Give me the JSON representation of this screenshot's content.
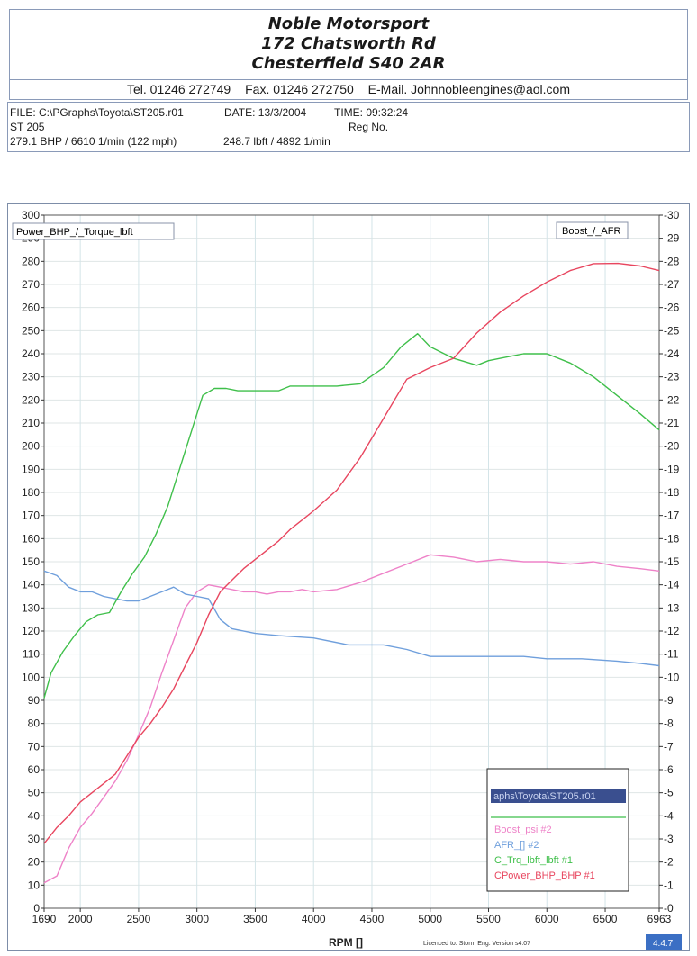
{
  "header": {
    "line1": "Noble Motorsport",
    "line2": "172 Chatsworth Rd",
    "line3": "Chesterfield S40 2AR",
    "tel": "Tel. 01246 272749",
    "fax": "Fax. 01246 272750",
    "email": "E-Mail. Johnnobleengines@aol.com"
  },
  "info": {
    "file": "FILE: C:\\PGraphs\\Toyota\\ST205.r01",
    "date": "DATE: 13/3/2004",
    "time": "TIME: 09:32:24",
    "model": "ST 205",
    "reg": "Reg No.",
    "power_peak": "279.1 BHP / 6610 1/min (122 mph)",
    "torque_peak": "248.7 lbft / 4892 1/min"
  },
  "chart_data": {
    "type": "line",
    "left_axis_label": "Power_BHP_/_Torque_lbft",
    "right_axis_label": "Boost_/_AFR",
    "xlabel": "RPM []",
    "xlim": [
      1690,
      6963
    ],
    "ylim": [
      0,
      300
    ],
    "y2lim": [
      0,
      30
    ],
    "x_ticks": [
      "1690",
      "2000",
      "2500",
      "3000",
      "3500",
      "4000",
      "4500",
      "5000",
      "5500",
      "6000",
      "6500",
      "6963"
    ],
    "y_ticks": [
      "0",
      "10",
      "20",
      "30",
      "40",
      "50",
      "60",
      "70",
      "80",
      "90",
      "100",
      "110",
      "120",
      "130",
      "140",
      "150",
      "160",
      "170",
      "180",
      "190",
      "200",
      "210",
      "220",
      "230",
      "240",
      "250",
      "260",
      "270",
      "280",
      "290",
      "300"
    ],
    "y2_ticks": [
      "0",
      "1",
      "2",
      "3",
      "4",
      "5",
      "6",
      "7",
      "8",
      "9",
      "10",
      "11",
      "12",
      "13",
      "14",
      "15",
      "16",
      "17",
      "18",
      "19",
      "20",
      "21",
      "22",
      "23",
      "24",
      "25",
      "26",
      "27",
      "28",
      "29",
      "30"
    ],
    "grid": true,
    "legend_file": "aphs\\Toyota\\ST205.r01",
    "footer_note": "Licenced to: Storm Eng.  Version s4.07",
    "version_badge": "4.4.7",
    "series": [
      {
        "name": "Boost_psi #2",
        "axis": "right",
        "color": "#ee82c8",
        "x": [
          1690,
          1800,
          1900,
          2000,
          2100,
          2200,
          2300,
          2400,
          2500,
          2600,
          2700,
          2800,
          2900,
          3000,
          3100,
          3200,
          3300,
          3400,
          3500,
          3600,
          3700,
          3800,
          3900,
          4000,
          4200,
          4400,
          4600,
          4800,
          5000,
          5200,
          5400,
          5600,
          5800,
          6000,
          6200,
          6400,
          6600,
          6800,
          6963
        ],
        "y": [
          1.1,
          1.4,
          2.6,
          3.5,
          4.1,
          4.8,
          5.5,
          6.4,
          7.5,
          8.7,
          10.2,
          11.6,
          13.0,
          13.7,
          14.0,
          13.9,
          13.8,
          13.7,
          13.7,
          13.6,
          13.7,
          13.7,
          13.8,
          13.7,
          13.8,
          14.1,
          14.5,
          14.9,
          15.3,
          15.2,
          15.0,
          15.1,
          15.0,
          15.0,
          14.9,
          15.0,
          14.8,
          14.7,
          14.6
        ]
      },
      {
        "name": "AFR_[] #2",
        "axis": "right",
        "color": "#6f9fdc",
        "x": [
          1690,
          1800,
          1900,
          2000,
          2100,
          2200,
          2300,
          2400,
          2500,
          2600,
          2700,
          2800,
          2900,
          3000,
          3100,
          3200,
          3300,
          3500,
          3700,
          4000,
          4300,
          4600,
          4800,
          5000,
          5300,
          5600,
          5800,
          6000,
          6300,
          6600,
          6800,
          6963
        ],
        "y": [
          14.6,
          14.4,
          13.9,
          13.7,
          13.7,
          13.5,
          13.4,
          13.3,
          13.3,
          13.5,
          13.7,
          13.9,
          13.6,
          13.5,
          13.4,
          12.5,
          12.1,
          11.9,
          11.8,
          11.7,
          11.4,
          11.4,
          11.2,
          10.9,
          10.9,
          10.9,
          10.9,
          10.8,
          10.8,
          10.7,
          10.6,
          10.5
        ]
      },
      {
        "name": "C_Trq_lbft_lbft #1",
        "axis": "left",
        "color": "#3fbf4a",
        "x": [
          1690,
          1750,
          1850,
          1950,
          2050,
          2150,
          2250,
          2350,
          2450,
          2550,
          2650,
          2750,
          2850,
          2950,
          3050,
          3150,
          3250,
          3350,
          3500,
          3700,
          3800,
          4000,
          4200,
          4400,
          4600,
          4750,
          4892,
          5000,
          5200,
          5400,
          5500,
          5600,
          5800,
          6000,
          6200,
          6400,
          6600,
          6800,
          6963
        ],
        "y": [
          91,
          102,
          111,
          118,
          124,
          127,
          128,
          137,
          145,
          152,
          162,
          174,
          190,
          206,
          222,
          225,
          225,
          224,
          224,
          224,
          226,
          226,
          226,
          227,
          234,
          243,
          248.7,
          243,
          238,
          235,
          237,
          238,
          240,
          240,
          236,
          230,
          222,
          214,
          207
        ]
      },
      {
        "name": "CPower_BHP_BHP #1",
        "axis": "left",
        "color": "#e8465f",
        "x": [
          1690,
          1800,
          1900,
          2000,
          2100,
          2200,
          2300,
          2400,
          2500,
          2600,
          2700,
          2800,
          2900,
          3000,
          3100,
          3200,
          3300,
          3400,
          3500,
          3600,
          3700,
          3800,
          3900,
          4000,
          4200,
          4400,
          4600,
          4800,
          5000,
          5200,
          5400,
          5600,
          5800,
          6000,
          6200,
          6400,
          6610,
          6800,
          6963
        ],
        "y": [
          28,
          35,
          40,
          46,
          50,
          54,
          58,
          66,
          74,
          80,
          87,
          95,
          105,
          115,
          127,
          137,
          142,
          147,
          151,
          155,
          159,
          164,
          168,
          172,
          181,
          195,
          212,
          229,
          234,
          238,
          249,
          258,
          265,
          271,
          276,
          279,
          279.1,
          278,
          276
        ]
      }
    ]
  }
}
